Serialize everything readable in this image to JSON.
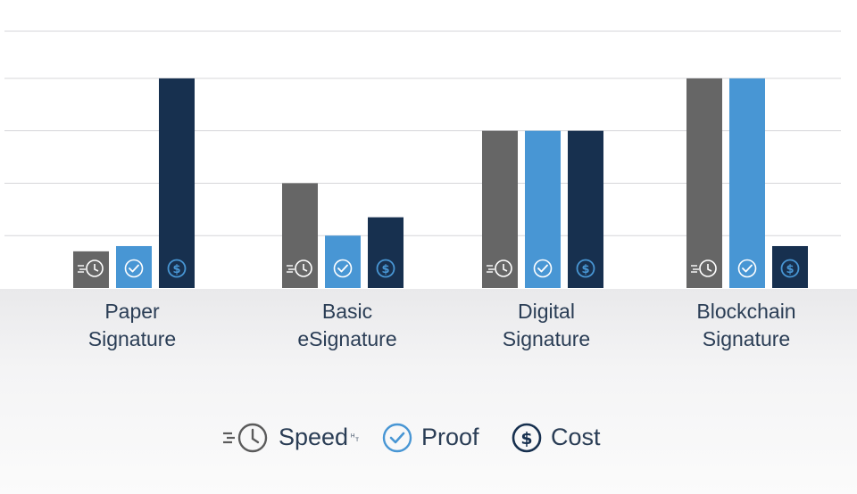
{
  "chart_data": {
    "type": "bar",
    "categories": [
      {
        "line1": "Paper",
        "line2": "Signature"
      },
      {
        "line1": "Basic",
        "line2": "eSignature"
      },
      {
        "line1": "Digital",
        "line2": "Signature"
      },
      {
        "line1": "Blockchain",
        "line2": "Signature"
      }
    ],
    "series": [
      {
        "name": "Speed",
        "icon": "clock-speed-icon",
        "color": "#666666",
        "values": [
          0.7,
          2.0,
          3.0,
          4.0
        ]
      },
      {
        "name": "Proof",
        "icon": "check-circle-icon",
        "color": "#4896d4",
        "values": [
          0.8,
          1.0,
          3.0,
          4.0
        ]
      },
      {
        "name": "Cost",
        "icon": "dollar-circle-icon",
        "color": "#17304f",
        "values": [
          4.0,
          1.35,
          3.0,
          0.8
        ]
      }
    ],
    "ylim": [
      0,
      4.9
    ],
    "grid": true,
    "legend_position": "bottom-center"
  },
  "legend": {
    "speed_label": "Speed",
    "speed_suffix": "␉",
    "proof_label": "Proof",
    "cost_label": "Cost"
  }
}
